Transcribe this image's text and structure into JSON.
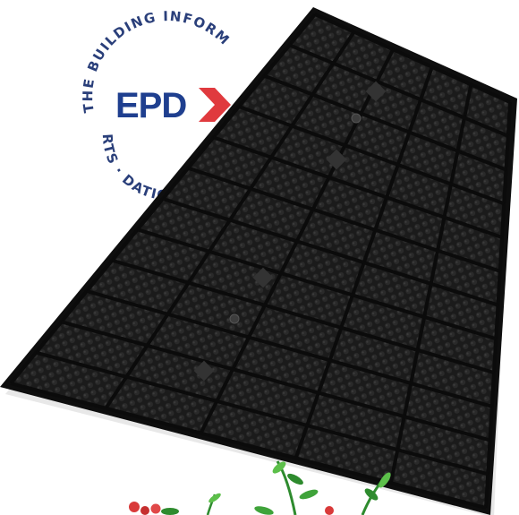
{
  "badge": {
    "logo_text": "EPD",
    "ring_top": "THE BUILDING INFORM",
    "ring_bottom": "RTS · DATION",
    "colors": {
      "text": "#1f3f8f",
      "ring": "#2a3f7a",
      "chevron": "#e03a3e"
    },
    "icon": "epd-badge-icon"
  },
  "product": {
    "icon": "drainage-mat-icon",
    "colors": {
      "body": "#1b1b1b",
      "rim": "#0e0e0e",
      "dimple": "#2a2a2a",
      "highlight": "#3b3b3b"
    }
  },
  "plants": {
    "icon": "plant-foliage-icon",
    "colors": {
      "leaf": "#2e8b2e",
      "leaf_light": "#5cbf4a",
      "flower": "#d93a3a"
    }
  }
}
